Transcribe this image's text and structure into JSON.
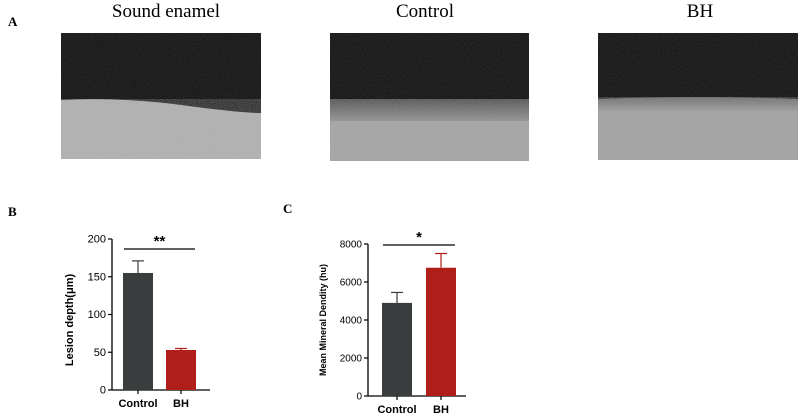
{
  "panels": {
    "a_label": "A",
    "b_label": "B",
    "c_label": "C"
  },
  "images": [
    {
      "title": "Sound enamel"
    },
    {
      "title": "Control"
    },
    {
      "title": "BH"
    }
  ],
  "colors": {
    "control_bar": "#3a3d3d",
    "bh_bar": "#b01e1a",
    "control_err": "#3a3d3d",
    "bh_err": "#b01e1a"
  },
  "chart_data": [
    {
      "type": "bar",
      "panel": "B",
      "categories": [
        "Control",
        "BH"
      ],
      "values": [
        155,
        53
      ],
      "errors": [
        16,
        2
      ],
      "ylabel": "Lesion depth(μm)",
      "ylim": [
        0,
        200
      ],
      "yticks": [
        0,
        50,
        100,
        150,
        200
      ],
      "significance": "**",
      "grid": false
    },
    {
      "type": "bar",
      "panel": "C",
      "categories": [
        "Control",
        "BH"
      ],
      "values": [
        4900,
        6750
      ],
      "errors": [
        550,
        750
      ],
      "ylabel": "Mean Mineral Dendity (hu)",
      "ylim": [
        0,
        8000
      ],
      "yticks": [
        0,
        2000,
        4000,
        6000,
        8000
      ],
      "significance": "*",
      "grid": false
    }
  ]
}
